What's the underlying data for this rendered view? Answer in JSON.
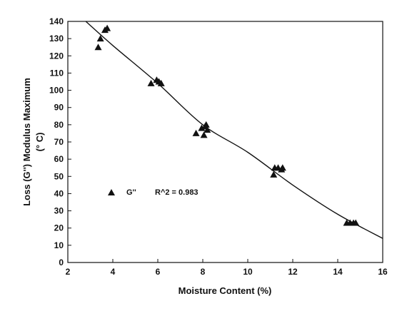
{
  "chart_data": {
    "type": "scatter",
    "xlabel": "Moisture Content (%)",
    "ylabel_lines": [
      "Loss (G'') Modulus Maximum",
      "(° C)"
    ],
    "xlim": [
      2,
      16
    ],
    "ylim": [
      0,
      140
    ],
    "xticks": [
      2,
      4,
      6,
      8,
      10,
      12,
      14,
      16
    ],
    "yticks": [
      0,
      10,
      20,
      30,
      40,
      50,
      60,
      70,
      80,
      90,
      100,
      110,
      120,
      130,
      140
    ],
    "grid": false,
    "legend": {
      "placement": "center-left",
      "series_label": "G''",
      "annotation": "R^2 = 0.983"
    },
    "series": [
      {
        "name": "G''",
        "marker": "triangle",
        "points": [
          {
            "x": 3.35,
            "y": 125
          },
          {
            "x": 3.45,
            "y": 130
          },
          {
            "x": 3.65,
            "y": 135
          },
          {
            "x": 3.75,
            "y": 136
          },
          {
            "x": 5.7,
            "y": 104
          },
          {
            "x": 5.95,
            "y": 106
          },
          {
            "x": 6.05,
            "y": 105
          },
          {
            "x": 6.15,
            "y": 104
          },
          {
            "x": 7.7,
            "y": 75
          },
          {
            "x": 7.95,
            "y": 78
          },
          {
            "x": 8.05,
            "y": 74
          },
          {
            "x": 8.1,
            "y": 79
          },
          {
            "x": 8.15,
            "y": 80
          },
          {
            "x": 8.2,
            "y": 77
          },
          {
            "x": 11.15,
            "y": 51
          },
          {
            "x": 11.2,
            "y": 55
          },
          {
            "x": 11.35,
            "y": 55
          },
          {
            "x": 11.5,
            "y": 54
          },
          {
            "x": 11.55,
            "y": 55
          },
          {
            "x": 14.4,
            "y": 23
          },
          {
            "x": 14.55,
            "y": 23
          },
          {
            "x": 14.7,
            "y": 23
          },
          {
            "x": 14.8,
            "y": 23
          }
        ]
      }
    ],
    "fit_line": [
      {
        "x": 2.8,
        "y": 140
      },
      {
        "x": 4,
        "y": 126
      },
      {
        "x": 6,
        "y": 104
      },
      {
        "x": 8,
        "y": 80
      },
      {
        "x": 10,
        "y": 64
      },
      {
        "x": 12,
        "y": 45
      },
      {
        "x": 14,
        "y": 28
      },
      {
        "x": 16,
        "y": 14
      }
    ]
  }
}
